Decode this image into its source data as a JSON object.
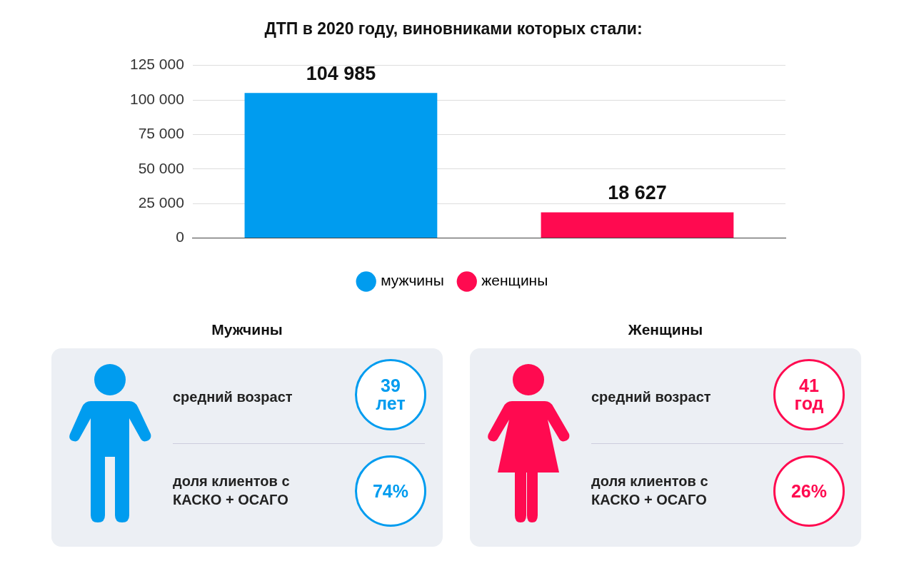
{
  "chart_data": [
    {
      "type": "bar",
      "title": "ДТП в 2020 году, виновниками которых стали:",
      "categories": [
        null,
        null
      ],
      "series": [
        {
          "name": "мужчины",
          "color": "#009cef",
          "values": [
            104985,
            null
          ],
          "value_labels": [
            "104 985",
            null
          ]
        },
        {
          "name": "женщины",
          "color": "#ff0a50",
          "values": [
            null,
            18627
          ],
          "value_labels": [
            null,
            "18 627"
          ]
        }
      ],
      "ylim": [
        0,
        125000
      ],
      "yticks": [
        {
          "value": 0,
          "label": "0"
        },
        {
          "value": 25000,
          "label": "25 000"
        },
        {
          "value": 50000,
          "label": "50 000"
        },
        {
          "value": 75000,
          "label": "75 000"
        },
        {
          "value": 100000,
          "label": "100 000"
        },
        {
          "value": 125000,
          "label": "125 000"
        }
      ],
      "grid": "y",
      "legend": "bottom"
    },
    {
      "type": "other",
      "title": "Мужчины",
      "color": "#009cef",
      "annotations": [
        "средний возраст",
        "39 лет",
        "доля клиентов с КАСКО + ОСАГО",
        "74%"
      ]
    },
    {
      "type": "other",
      "title": "Женщины",
      "color": "#ff0a50",
      "annotations": [
        "средний возраст",
        "41 год",
        "доля клиентов с КАСКО + ОСАГО",
        "26%"
      ]
    }
  ]
}
